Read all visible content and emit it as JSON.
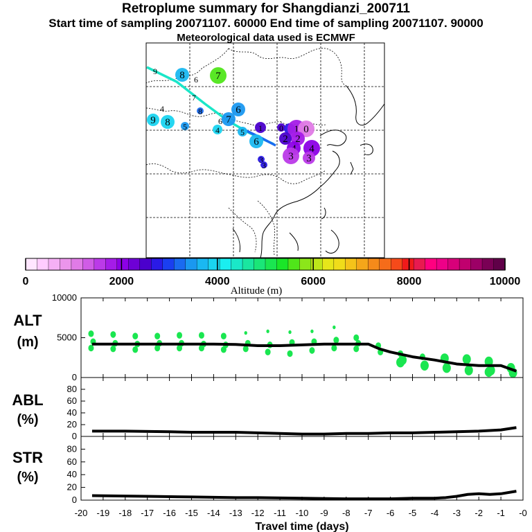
{
  "header": {
    "title": "Retroplume summary for Shangdianzi_200711",
    "sampling_line": "Start time of sampling 20071107. 60000     End time of sampling 20071107. 90000",
    "met_line": "Meteorological data used is ECMWF"
  },
  "colorbar": {
    "ticks": [
      "0",
      "2000",
      "4000",
      "6000",
      "8000",
      "10000"
    ],
    "label": "Altitude (m)",
    "colors": [
      "#ffe6ff",
      "#ffccff",
      "#f5b0f5",
      "#eb95eb",
      "#e07be6",
      "#d05ce6",
      "#bb3ae8",
      "#a51ce8",
      "#8c00e6",
      "#6e00d6",
      "#4b00cc",
      "#2a1ae6",
      "#1a3ff0",
      "#1a6bf0",
      "#1a98f0",
      "#1ab8f2",
      "#1ad4f0",
      "#1aeef0",
      "#1ae8c8",
      "#1ae6a0",
      "#1ae678",
      "#1ae650",
      "#1ae628",
      "#50e61a",
      "#8ce61a",
      "#bde61a",
      "#e6e61a",
      "#f0dc1a",
      "#f5c31a",
      "#f5a61a",
      "#f58a1a",
      "#f56c1a",
      "#f54a1a",
      "#f01a1a",
      "#e81a50",
      "#ff0080",
      "#ee0088",
      "#d8007a",
      "#c0006e",
      "#9c0066",
      "#7a0055",
      "#600048"
    ]
  },
  "map": {
    "labels": [
      {
        "t": "9",
        "c": "#000000"
      },
      {
        "t": "8",
        "c": "#1ab8f0"
      },
      {
        "t": "6",
        "c": "#000000"
      },
      {
        "t": "7",
        "c": "#50e61a"
      },
      {
        "t": "7",
        "c": "#000000"
      },
      {
        "t": "4",
        "c": "#000000"
      },
      {
        "t": "8",
        "c": "#1a6bf0"
      },
      {
        "t": "6",
        "c": "#1a98f0"
      },
      {
        "t": "7",
        "c": "#1a98f0"
      },
      {
        "t": "6",
        "c": "#000000"
      },
      {
        "t": "9",
        "c": "#1ad4f0"
      },
      {
        "t": "8",
        "c": "#1ad4f0"
      },
      {
        "t": "5",
        "c": "#1a98f0"
      },
      {
        "t": "4",
        "c": "#1ad4f0"
      },
      {
        "t": "1",
        "c": "#4b00cc"
      },
      {
        "t": "5",
        "c": "#1ab8f0"
      },
      {
        "t": "6",
        "c": "#1ab8f0"
      },
      {
        "t": "0",
        "c": "#4b00cc"
      },
      {
        "t": "1",
        "c": "#2a1ae6"
      },
      {
        "t": "1",
        "c": "#a51ce8"
      },
      {
        "t": "0",
        "c": "#e07be6"
      },
      {
        "t": "2",
        "c": "#a51ce8"
      },
      {
        "t": "2",
        "c": "#4b00cc"
      },
      {
        "t": "4",
        "c": "#8c00e6"
      },
      {
        "t": "4",
        "c": "#8c00e6"
      },
      {
        "t": "3",
        "c": "#bb3ae8"
      },
      {
        "t": "3",
        "c": "#bb3ae8"
      },
      {
        "t": "3",
        "c": "#2a1ae6"
      },
      {
        "t": "3",
        "c": "#2a1ae6"
      }
    ]
  },
  "chart_data": [
    {
      "type": "line",
      "panel_label": "ALT\n(m)",
      "label_line1": "ALT",
      "label_line2": "(m)",
      "xlim": [
        -20,
        0
      ],
      "ylim": [
        0,
        10000
      ],
      "yticks": [
        "10000",
        "5000",
        "0"
      ],
      "series": [
        {
          "name": "mean altitude",
          "x": [
            -19.5,
            -19,
            -18,
            -17,
            -16,
            -15,
            -14,
            -13,
            -12,
            -11,
            -10,
            -9,
            -8,
            -7,
            -6.5,
            -6,
            -5,
            -4,
            -3,
            -2,
            -1,
            -0.3
          ],
          "values": [
            4200,
            4200,
            4200,
            4200,
            4200,
            4200,
            4200,
            4150,
            4000,
            4000,
            4100,
            4200,
            4200,
            4200,
            3600,
            3200,
            2600,
            2200,
            1700,
            1500,
            1500,
            800
          ]
        }
      ],
      "scatter": [
        {
          "x": -19.5,
          "ys": [
            5500,
            4500,
            3700
          ]
        },
        {
          "x": -18.5,
          "ys": [
            5400,
            4300,
            3600
          ]
        },
        {
          "x": -17.5,
          "ys": [
            5200,
            4200,
            3500
          ]
        },
        {
          "x": -16.5,
          "ys": [
            5200,
            4300,
            3700
          ]
        },
        {
          "x": -15.5,
          "ys": [
            5300,
            4300,
            3700
          ]
        },
        {
          "x": -14.5,
          "ys": [
            5300,
            4200,
            3700
          ]
        },
        {
          "x": -13.5,
          "ys": [
            5200,
            4100,
            3500
          ]
        },
        {
          "x": -12.5,
          "ys": [
            5600,
            4300,
            3600
          ]
        },
        {
          "x": -11.5,
          "ys": [
            5800,
            4100,
            3200
          ]
        },
        {
          "x": -10.5,
          "ys": [
            5700,
            4400,
            3000
          ]
        },
        {
          "x": -9.5,
          "ys": [
            5800,
            4500,
            3400
          ]
        },
        {
          "x": -8.5,
          "ys": [
            6300,
            4700,
            3700
          ]
        },
        {
          "x": -7.5,
          "ys": [
            5000,
            4300,
            3600
          ]
        },
        {
          "x": -6.5,
          "ys": [
            4000,
            3200
          ]
        },
        {
          "x": -5.5,
          "ys": [
            3000,
            2200,
            1900
          ]
        },
        {
          "x": -4.5,
          "ys": [
            2600,
            1500
          ]
        },
        {
          "x": -3.5,
          "ys": [
            2400,
            1200
          ]
        },
        {
          "x": -2.5,
          "ys": [
            2300,
            900
          ]
        },
        {
          "x": -1.5,
          "ys": [
            2000,
            900,
            700
          ]
        },
        {
          "x": -0.5,
          "ys": [
            1200,
            600
          ]
        }
      ]
    },
    {
      "type": "line",
      "panel_label": "ABL\n(%)",
      "label_line1": "ABL",
      "label_line2": "(%)",
      "xlim": [
        -20,
        0
      ],
      "ylim": [
        0,
        100
      ],
      "yticks": [
        "80",
        "60",
        "40",
        "20",
        "0"
      ],
      "series": [
        {
          "name": "ABL fraction",
          "x": [
            -19.5,
            -18,
            -16,
            -15,
            -13,
            -12,
            -11,
            -10,
            -9,
            -8,
            -7,
            -6,
            -5,
            -4,
            -3,
            -2,
            -1,
            -0.3
          ],
          "values": [
            9,
            9,
            8,
            7,
            7,
            6,
            5,
            4,
            4,
            5,
            5,
            6,
            6,
            7,
            8,
            9,
            11,
            15
          ]
        }
      ]
    },
    {
      "type": "line",
      "panel_label": "STR\n(%)",
      "label_line1": "STR",
      "label_line2": "(%)",
      "xlim": [
        -20,
        0
      ],
      "ylim": [
        0,
        100
      ],
      "yticks": [
        "80",
        "60",
        "40",
        "20",
        "0"
      ],
      "xlabel": "Travel time (days)",
      "xticks": [
        "-20",
        "-19",
        "-18",
        "-17",
        "-16",
        "-15",
        "-14",
        "-13",
        "-12",
        "-11",
        "-10",
        "-9",
        "-8",
        "-7",
        "-6",
        "-5",
        "-4",
        "-3",
        "-2",
        "-1",
        "-0"
      ],
      "series": [
        {
          "name": "stratospheric fraction",
          "x": [
            -19.5,
            -17,
            -15,
            -13,
            -12,
            -10,
            -8,
            -6,
            -5,
            -4,
            -3.5,
            -3,
            -2.5,
            -2,
            -1.5,
            -1,
            -0.3
          ],
          "values": [
            7,
            6,
            5,
            4,
            4,
            3,
            2,
            2,
            3,
            3,
            4,
            6,
            9,
            10,
            9,
            10,
            14
          ]
        }
      ]
    }
  ]
}
